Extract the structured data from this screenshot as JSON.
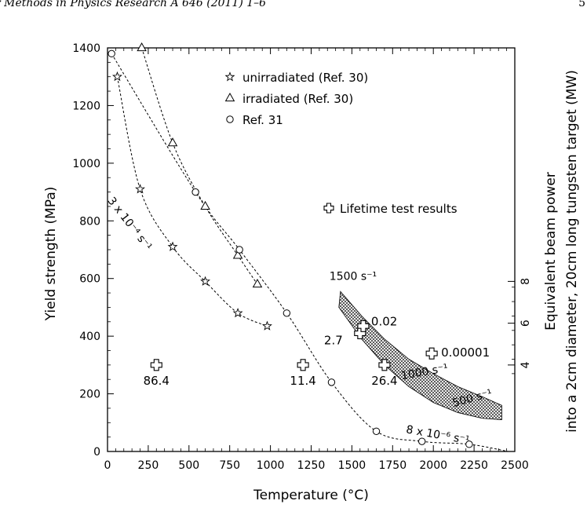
{
  "header": {
    "left": "r Methods in Physics Research A 646 (2011) 1–6",
    "right": "5"
  },
  "chart_data": {
    "type": "scatter",
    "xlabel": "Temperature (°C)",
    "ylabel": "Yield strength (MPa)",
    "y2label_line1": "Equivalent beam power",
    "y2label_line2": "into a 2cm diameter, 20cm long tungsten target (MW)",
    "xlim": [
      0,
      2500
    ],
    "ylim": [
      0,
      1400
    ],
    "xticks": [
      "0",
      "250",
      "500",
      "750",
      "1000",
      "1250",
      "1500",
      "1750",
      "2000",
      "2250",
      "2500"
    ],
    "yticks": [
      "0",
      "200",
      "400",
      "600",
      "800",
      "1000",
      "1200",
      "1400"
    ],
    "y2ticks": [
      {
        "label": "4",
        "y": 300
      },
      {
        "label": "6",
        "y": 445
      },
      {
        "label": "8",
        "y": 590
      }
    ],
    "grid": false,
    "legend": [
      {
        "marker": "star",
        "label": "unirradiated (Ref. 30)"
      },
      {
        "marker": "triangle",
        "label": "irradiated (Ref. 30)"
      },
      {
        "marker": "circle",
        "label": "Ref. 31"
      },
      {
        "marker": "cross",
        "label": "Lifetime test results"
      }
    ],
    "series": [
      {
        "label": "unirradiated (Ref. 30)",
        "marker": "star",
        "x": [
          60,
          200,
          400,
          600,
          800,
          980
        ],
        "y": [
          1300,
          910,
          710,
          590,
          480,
          435
        ]
      },
      {
        "label": "irradiated (Ref. 30)",
        "marker": "triangle",
        "x": [
          210,
          400,
          600,
          800,
          920
        ],
        "y": [
          1400,
          1070,
          850,
          680,
          580
        ]
      },
      {
        "label": "Ref. 31",
        "marker": "circle",
        "x": [
          25,
          540,
          810,
          1100,
          1375,
          1650,
          1930,
          2220
        ],
        "y": [
          1380,
          900,
          700,
          480,
          240,
          70,
          35,
          25
        ]
      },
      {
        "label": "Lifetime test results",
        "marker": "cross",
        "x": [
          300,
          1200,
          1700,
          1550,
          1570,
          1990
        ],
        "y": [
          300,
          300,
          300,
          410,
          435,
          340
        ],
        "point_labels": [
          "86.4",
          "11.4",
          "26.4",
          "2.7",
          "0.02",
          "0.00001"
        ]
      }
    ],
    "annotations": [
      {
        "text": "3 x 10⁻⁴ s⁻¹",
        "x": 230,
        "y": 870
      },
      {
        "text": "8 x 10⁻⁶ s⁻¹",
        "x": 1830,
        "y": 65
      },
      {
        "text": "1500 s⁻¹",
        "x": 1420,
        "y": 595
      },
      {
        "text": "1000 s⁻¹",
        "x": 1980,
        "y": 250
      },
      {
        "text": "500 s⁻¹",
        "x": 2260,
        "y": 155
      }
    ],
    "band": {
      "description": "hatched strain-rate band",
      "upper": [
        [
          1430,
          555
        ],
        [
          1560,
          470
        ],
        [
          1700,
          390
        ],
        [
          1850,
          320
        ],
        [
          2000,
          270
        ],
        [
          2150,
          225
        ],
        [
          2300,
          190
        ],
        [
          2420,
          160
        ]
      ],
      "lower": [
        [
          1420,
          500
        ],
        [
          1560,
          390
        ],
        [
          1700,
          300
        ],
        [
          1850,
          225
        ],
        [
          2000,
          170
        ],
        [
          2150,
          135
        ],
        [
          2300,
          115
        ],
        [
          2420,
          110
        ]
      ]
    }
  }
}
